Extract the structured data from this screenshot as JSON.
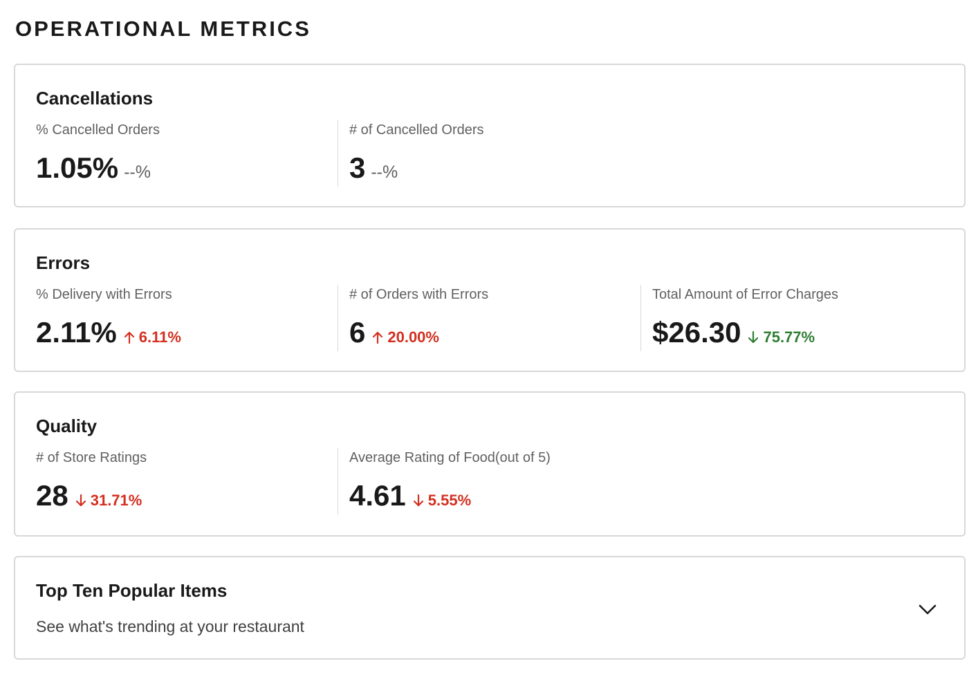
{
  "page_title": "OPERATIONAL METRICS",
  "colors": {
    "increase": "#d32f1f",
    "decrease_good": "#2e7d32",
    "decrease_bad": "#d32f1f",
    "neutral": "#606060"
  },
  "cancellations": {
    "title": "Cancellations",
    "metrics": [
      {
        "label": "% Cancelled Orders",
        "value": "1.05%",
        "delta": "--%"
      },
      {
        "label": "# of Cancelled Orders",
        "value": "3",
        "delta": "--%"
      }
    ]
  },
  "errors": {
    "title": "Errors",
    "metrics": [
      {
        "label": "% Delivery with Errors",
        "value": "2.11%",
        "delta": "6.11%",
        "direction": "up"
      },
      {
        "label": "# of Orders with Errors",
        "value": "6",
        "delta": "20.00%",
        "direction": "up"
      },
      {
        "label": "Total Amount of Error Charges",
        "value": "$26.30",
        "delta": "75.77%",
        "direction": "down"
      }
    ]
  },
  "quality": {
    "title": "Quality",
    "metrics": [
      {
        "label": "# of Store Ratings",
        "value": "28",
        "delta": "31.71%",
        "direction": "down"
      },
      {
        "label": "Average Rating of Food(out of 5)",
        "value": "4.61",
        "delta": "5.55%",
        "direction": "down"
      }
    ]
  },
  "popular_items": {
    "title": "Top Ten Popular Items",
    "subtitle": "See what's trending at your restaurant",
    "expand_icon": "chevron-down-icon"
  }
}
